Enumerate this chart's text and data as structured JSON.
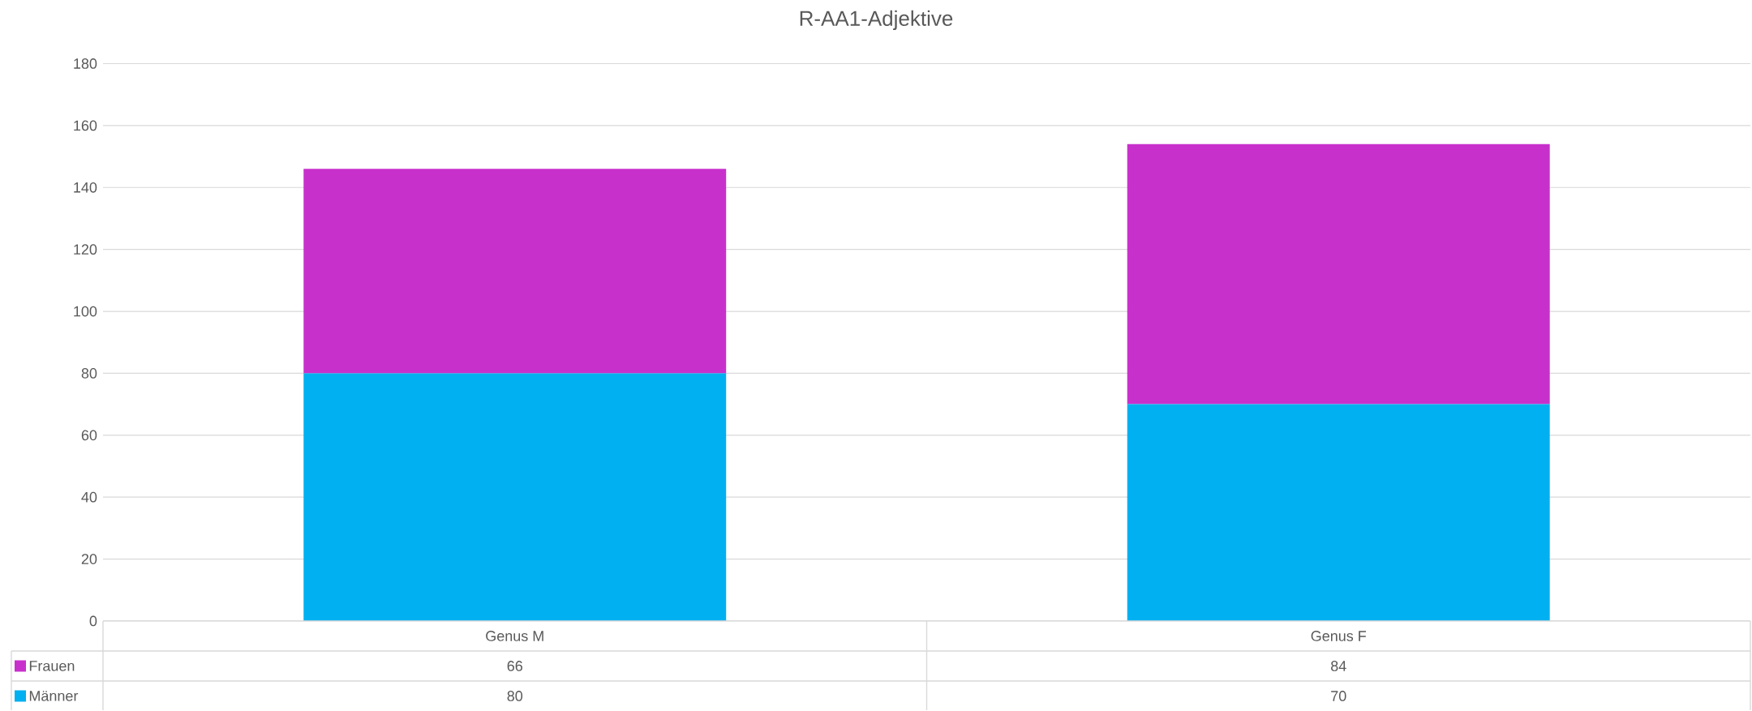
{
  "chart_data": {
    "type": "bar",
    "title": "R-AA1-Adjektive",
    "stacked": true,
    "categories": [
      "Genus M",
      "Genus F"
    ],
    "series": [
      {
        "name": "Männer",
        "color": "#00b0f0",
        "values": [
          80,
          70
        ]
      },
      {
        "name": "Frauen",
        "color": "#c830cc",
        "values": [
          66,
          84
        ]
      }
    ],
    "ylim": [
      0,
      180
    ],
    "yticks": [
      0,
      20,
      40,
      60,
      80,
      100,
      120,
      140,
      160,
      180
    ],
    "grid": "y",
    "legend": "bottom",
    "data_labels": true
  }
}
